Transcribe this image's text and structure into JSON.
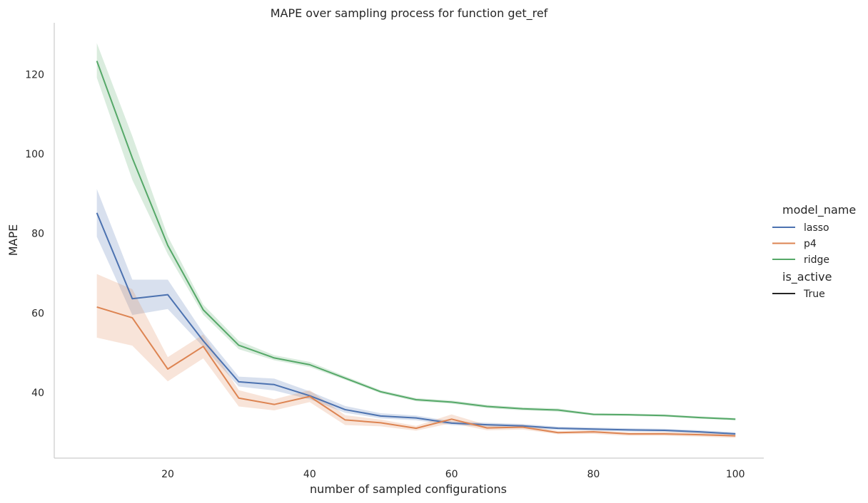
{
  "chart_data": {
    "type": "line",
    "title": "MAPE over sampling process for function get_ref",
    "xlabel": "number of sampled configurations",
    "ylabel": "MAPE",
    "xlim": [
      4,
      104
    ],
    "ylim": [
      23.5,
      133
    ],
    "x_ticks": [
      20,
      40,
      60,
      80,
      100
    ],
    "y_ticks": [
      40,
      60,
      80,
      100,
      120
    ],
    "grid": false,
    "legend_placement": "right",
    "x": [
      10,
      15,
      20,
      25,
      30,
      35,
      40,
      45,
      50,
      55,
      60,
      65,
      70,
      75,
      80,
      85,
      90,
      95,
      100
    ],
    "legend": {
      "hue_title": "model_name",
      "style_title": "is_active",
      "style_entries": [
        {
          "label": "True",
          "color": "#262626"
        }
      ]
    },
    "series": [
      {
        "name": "lasso",
        "color": "#4c72b0",
        "values": [
          85.2,
          63.6,
          64.6,
          53.0,
          42.7,
          42.0,
          39.2,
          35.7,
          34.1,
          33.6,
          32.3,
          31.9,
          31.6,
          31.0,
          30.8,
          30.6,
          30.5,
          30.1,
          29.6
        ],
        "ci_low": [
          79.2,
          59.5,
          61.0,
          51.5,
          41.5,
          40.5,
          38.3,
          34.9,
          33.5,
          33.0,
          31.8,
          31.4,
          31.1,
          30.6,
          30.4,
          30.2,
          30.1,
          29.7,
          29.2
        ],
        "ci_high": [
          91.2,
          68.4,
          68.4,
          55.0,
          44.0,
          43.5,
          40.3,
          36.6,
          34.8,
          34.2,
          32.8,
          32.4,
          32.1,
          31.4,
          31.2,
          31.0,
          30.9,
          30.5,
          30.0
        ]
      },
      {
        "name": "p4",
        "color": "#dd8452",
        "values": [
          61.5,
          58.8,
          45.9,
          51.6,
          38.6,
          37.0,
          39.0,
          33.1,
          32.4,
          31.0,
          33.3,
          31.1,
          31.3,
          29.9,
          30.1,
          29.6,
          29.6,
          29.4,
          29.1
        ],
        "ci_low": [
          53.8,
          51.8,
          42.8,
          48.6,
          36.5,
          35.5,
          37.6,
          31.8,
          31.5,
          30.4,
          32.3,
          30.5,
          30.7,
          29.5,
          29.6,
          29.1,
          29.1,
          28.9,
          28.6
        ],
        "ci_high": [
          69.8,
          66.0,
          48.9,
          54.6,
          40.6,
          38.3,
          40.6,
          34.3,
          33.2,
          31.6,
          34.5,
          31.8,
          31.9,
          30.3,
          30.5,
          30.0,
          30.1,
          29.9,
          29.6
        ]
      },
      {
        "name": "ridge",
        "color": "#55a868",
        "values": [
          123.4,
          99.0,
          77.0,
          60.8,
          51.9,
          48.7,
          47.0,
          43.6,
          40.2,
          38.2,
          37.6,
          36.5,
          35.9,
          35.6,
          34.5,
          34.4,
          34.2,
          33.7,
          33.3
        ],
        "ci_low": [
          119.2,
          93.5,
          74.8,
          59.6,
          50.9,
          48.1,
          46.4,
          43.2,
          39.8,
          37.8,
          37.2,
          36.1,
          35.5,
          35.2,
          34.2,
          34.1,
          33.9,
          33.4,
          33.0
        ],
        "ci_high": [
          127.9,
          104.5,
          79.3,
          62.1,
          53.0,
          49.4,
          47.7,
          44.1,
          40.6,
          38.6,
          38.0,
          36.9,
          36.3,
          36.0,
          34.8,
          34.7,
          34.5,
          34.0,
          33.6
        ]
      }
    ]
  }
}
